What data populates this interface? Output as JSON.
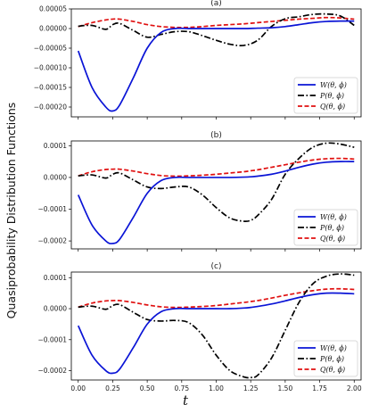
{
  "figure": {
    "ylabel": "Quasiprobability Distribution Functions",
    "xlabel": "t",
    "colors": {
      "W": "#0a14d6",
      "P": "#000000",
      "Q": "#e01010"
    }
  },
  "chart_data": [
    {
      "type": "line",
      "title": "(a)",
      "xlim": [
        -0.05,
        2.05
      ],
      "ylim": [
        -0.000225,
        5e-05
      ],
      "xticks": [
        0.0,
        0.25,
        0.5,
        0.75,
        1.0,
        1.25,
        1.5,
        1.75,
        2.0
      ],
      "yticks": [
        5e-05,
        0.0,
        -5e-05,
        -0.0001,
        -0.00015,
        -0.0002
      ],
      "ytick_labels": [
        "0.00005",
        "0.00000",
        "−0.00005",
        "−0.00010",
        "−0.00015",
        "−0.00020"
      ],
      "legend": "bottom-right",
      "x": [
        0.0,
        0.1,
        0.2,
        0.25,
        0.3,
        0.4,
        0.5,
        0.6,
        0.7,
        0.8,
        0.9,
        1.0,
        1.1,
        1.2,
        1.3,
        1.4,
        1.5,
        1.6,
        1.7,
        1.8,
        1.9,
        2.0
      ],
      "series": [
        {
          "key": "W",
          "name": "W(θ, ϕ)",
          "style": "solid",
          "values": [
            -5.7e-05,
            -0.00015,
            -0.0002,
            -0.00021,
            -0.000195,
            -0.000125,
            -5e-05,
            -1e-05,
            0.0,
            0.0,
            0.0,
            0.0,
            0.0,
            0.0,
            1e-06,
            2e-06,
            5e-06,
            1e-05,
            1.5e-05,
            1.8e-05,
            1.9e-05,
            1.9e-05
          ]
        },
        {
          "key": "P",
          "name": "P(θ, ϕ)",
          "style": "dashdot",
          "values": [
            6e-06,
            8e-06,
            -2e-06,
            1e-05,
            1.3e-05,
            -5e-06,
            -2.2e-05,
            -1.5e-05,
            -8e-06,
            -8e-06,
            -1.8e-05,
            -3e-05,
            -4e-05,
            -4.3e-05,
            -3e-05,
            5e-06,
            2.5e-05,
            3e-05,
            3.6e-05,
            3.7e-05,
            3.2e-05,
            8e-06
          ]
        },
        {
          "key": "Q",
          "name": "Q(θ, ϕ)",
          "style": "dashed",
          "values": [
            5e-06,
            1.5e-05,
            2.2e-05,
            2.4e-05,
            2.4e-05,
            1.8e-05,
            1e-05,
            5e-06,
            3e-06,
            3e-06,
            5e-06,
            8e-06,
            1e-05,
            1.2e-05,
            1.5e-05,
            1.8e-05,
            2.1e-05,
            2.4e-05,
            2.6e-05,
            2.8e-05,
            2.7e-05,
            2.4e-05
          ]
        }
      ]
    },
    {
      "type": "line",
      "title": "(b)",
      "xlim": [
        -0.05,
        2.05
      ],
      "ylim": [
        -0.000225,
        0.000115
      ],
      "xticks": [
        0.0,
        0.25,
        0.5,
        0.75,
        1.0,
        1.25,
        1.5,
        1.75,
        2.0
      ],
      "yticks": [
        0.0001,
        0.0,
        -0.0001,
        -0.0002
      ],
      "ytick_labels": [
        "0.0001",
        "0.0000",
        "−0.0001",
        "−0.0002"
      ],
      "legend": "bottom-right",
      "x": [
        0.0,
        0.1,
        0.2,
        0.25,
        0.3,
        0.4,
        0.5,
        0.6,
        0.7,
        0.8,
        0.9,
        1.0,
        1.1,
        1.2,
        1.25,
        1.3,
        1.4,
        1.5,
        1.6,
        1.7,
        1.8,
        1.9,
        2.0
      ],
      "series": [
        {
          "key": "W",
          "name": "W(θ, ϕ)",
          "style": "solid",
          "values": [
            -5.5e-05,
            -0.00015,
            -0.0002,
            -0.000208,
            -0.000195,
            -0.000125,
            -5e-05,
            -1e-05,
            0.0,
            0.0,
            0.0,
            0.0,
            0.0,
            1e-06,
            2e-06,
            4e-06,
            1e-05,
            2e-05,
            3.2e-05,
            4.2e-05,
            4.8e-05,
            5e-05,
            5e-05
          ]
        },
        {
          "key": "P",
          "name": "P(θ, ϕ)",
          "style": "dashdot",
          "values": [
            5e-06,
            8e-06,
            -2e-06,
            1e-05,
            1.4e-05,
            -8e-06,
            -3e-05,
            -3.5e-05,
            -3e-05,
            -3e-05,
            -5.5e-05,
            -9.5e-05,
            -0.000128,
            -0.000138,
            -0.000135,
            -0.00012,
            -7e-05,
            1e-05,
            6e-05,
            9.5e-05,
            0.000108,
            0.000105,
            9.5e-05
          ]
        },
        {
          "key": "Q",
          "name": "Q(θ, ϕ)",
          "style": "dashed",
          "values": [
            5e-06,
            1.8e-05,
            2.5e-05,
            2.6e-05,
            2.6e-05,
            2e-05,
            1.2e-05,
            6e-06,
            4e-06,
            5e-06,
            7e-06,
            1e-05,
            1.4e-05,
            1.8e-05,
            2.1e-05,
            2.4e-05,
            3.2e-05,
            4e-05,
            4.8e-05,
            5.5e-05,
            5.9e-05,
            6e-05,
            5.8e-05
          ]
        }
      ]
    },
    {
      "type": "line",
      "title": "(c)",
      "xlim": [
        -0.05,
        2.05
      ],
      "ylim": [
        -0.00023,
        0.000118
      ],
      "xticks": [
        0.0,
        0.25,
        0.5,
        0.75,
        1.0,
        1.25,
        1.5,
        1.75,
        2.0
      ],
      "xtick_labels": [
        "0.00",
        "0.25",
        "0.50",
        "0.75",
        "1.00",
        "1.25",
        "1.50",
        "1.75",
        "2.00"
      ],
      "yticks": [
        0.0001,
        0.0,
        -0.0001,
        -0.0002
      ],
      "ytick_labels": [
        "0.0001",
        "0.0000",
        "−0.0001",
        "−0.0002"
      ],
      "legend": "bottom-right",
      "x": [
        0.0,
        0.1,
        0.2,
        0.25,
        0.3,
        0.4,
        0.5,
        0.6,
        0.7,
        0.8,
        0.9,
        1.0,
        1.1,
        1.2,
        1.25,
        1.3,
        1.4,
        1.5,
        1.6,
        1.7,
        1.8,
        1.9,
        2.0
      ],
      "series": [
        {
          "key": "W",
          "name": "W(θ, ϕ)",
          "style": "solid",
          "values": [
            -5.5e-05,
            -0.00015,
            -0.0002,
            -0.000208,
            -0.000195,
            -0.000125,
            -5e-05,
            -1e-05,
            0.0,
            0.0,
            0.0,
            0.0,
            0.0,
            2e-06,
            4e-06,
            7e-06,
            1.5e-05,
            2.5e-05,
            3.6e-05,
            4.5e-05,
            5e-05,
            5e-05,
            4.8e-05
          ]
        },
        {
          "key": "P",
          "name": "P(θ, ϕ)",
          "style": "dashdot",
          "values": [
            5e-06,
            8e-06,
            -2e-06,
            1e-05,
            1.3e-05,
            -1.2e-05,
            -3.5e-05,
            -4e-05,
            -3.8e-05,
            -4.5e-05,
            -8.5e-05,
            -0.00015,
            -0.0002,
            -0.00022,
            -0.000222,
            -0.000215,
            -0.00016,
            -7e-05,
            2e-05,
            8e-05,
            0.000105,
            0.000112,
            0.000108
          ]
        },
        {
          "key": "Q",
          "name": "Q(θ, ϕ)",
          "style": "dashed",
          "values": [
            5e-06,
            1.8e-05,
            2.5e-05,
            2.6e-05,
            2.6e-05,
            2e-05,
            1.2e-05,
            6e-06,
            4e-06,
            5e-06,
            7e-06,
            1e-05,
            1.5e-05,
            2e-05,
            2.3e-05,
            2.6e-05,
            3.4e-05,
            4.3e-05,
            5.1e-05,
            5.8e-05,
            6.3e-05,
            6.4e-05,
            6.2e-05
          ]
        }
      ]
    }
  ]
}
